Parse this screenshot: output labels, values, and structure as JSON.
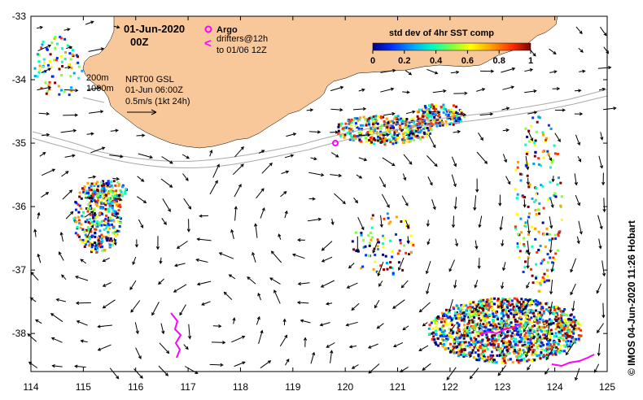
{
  "map": {
    "date_line1": "01-Jun-2020",
    "date_line2": "00Z",
    "argo_label": "Argo",
    "drifters_label1": "drifters@12h",
    "drifters_label2": "to 01/06 12Z",
    "contour_200": "200m",
    "contour_1000": "1000m",
    "product": "NRT00 GSL",
    "product_time": "01-Jun 06:00Z",
    "speed_scale": "0.5m/s (1kt 24h)",
    "credit": "© IMOS 04-Jun-2020 11:26 Hobart",
    "colors": {
      "land": "#f9c89a",
      "argo": "#ff00ff",
      "drifter": "#ff00ff",
      "shelf_contour": "#aaaaaa"
    },
    "lon_ticks": [
      "114",
      "115",
      "116",
      "117",
      "118",
      "119",
      "120",
      "121",
      "122",
      "123",
      "124",
      "125"
    ],
    "lat_ticks": [
      "-33",
      "-34",
      "-35",
      "-36",
      "-37",
      "-38"
    ]
  },
  "colorbar": {
    "title": "std dev of 4hr SST comp",
    "ticks": [
      "0",
      "0.2",
      "0.4",
      "0.6",
      "0.8",
      "1"
    ],
    "range": [
      0,
      1
    ],
    "colormap": [
      "#000080",
      "#0030ff",
      "#00a0ff",
      "#00ffc0",
      "#80ff40",
      "#ffff00",
      "#ffa000",
      "#ff3000",
      "#800000"
    ]
  },
  "chart_data": {
    "type": "map",
    "xlim": [
      114,
      125
    ],
    "ylim": [
      -38.6,
      -33
    ],
    "argo_floats": [
      {
        "lon": 119.8,
        "lat": -34.95
      }
    ]
  }
}
